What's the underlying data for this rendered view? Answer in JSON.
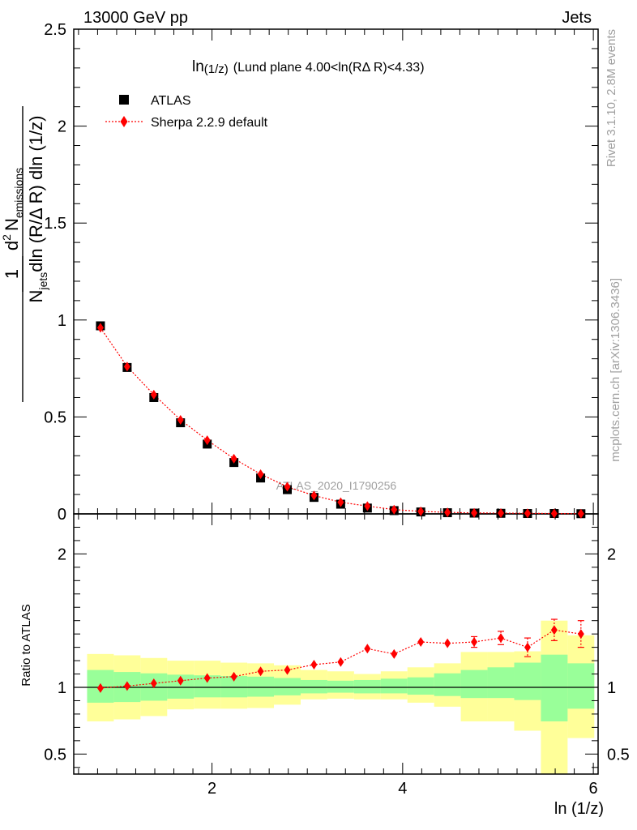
{
  "header": {
    "left": "13000 GeV pp",
    "right": "Jets"
  },
  "title": {
    "main": "ln",
    "main_sub": "(1/z)",
    "detail": "(Lund plane 4.00<ln(RΔ R)<4.33)"
  },
  "y_label": {
    "frac_one": "1",
    "num_d": "d",
    "num_exp": "2",
    "num_n": "N",
    "num_sub": "emissions",
    "den_n": "N",
    "den_sub": "jets",
    "den_rest": "dln (R/Δ R) dln (1/z)"
  },
  "ratio_label": "Ratio to ATLAS",
  "x_label": "ln (1/z)",
  "side_labels": {
    "rivet": "Rivet 3.1.10,  2.8M events",
    "mcplots": "mcplots.cern.ch [arXiv:1306.3436]"
  },
  "watermark": "ATLAS_2020_I1790256",
  "legend": {
    "atlas": "ATLAS",
    "sherpa": "Sherpa 2.2.9 default"
  },
  "colors": {
    "data": "#000000",
    "mc": "#ff0000",
    "band_inner": "#99ff99",
    "band_outer": "#ffff99"
  },
  "chart_data": {
    "type": "scatter",
    "xlabel": "ln (1/z)",
    "xlim": [
      0.55,
      6.05
    ],
    "main_ylim": [
      0,
      2.5
    ],
    "ratio_ylim": [
      0.35,
      2.3
    ],
    "x_ticks": [
      "2",
      "4",
      "6"
    ],
    "main_y_ticks": [
      "0",
      "0.5",
      "1",
      "1.5",
      "2",
      "2.5"
    ],
    "ratio_y_ticks": [
      "0.5",
      "1",
      "2"
    ],
    "bin_edges": [
      0.69,
      0.97,
      1.25,
      1.53,
      1.81,
      2.09,
      2.37,
      2.65,
      2.93,
      3.21,
      3.49,
      3.77,
      4.05,
      4.33,
      4.61,
      4.89,
      5.17,
      5.45,
      5.73,
      6.01
    ],
    "x": [
      0.83,
      1.11,
      1.39,
      1.67,
      1.95,
      2.23,
      2.51,
      2.79,
      3.07,
      3.35,
      3.63,
      3.91,
      4.19,
      4.47,
      4.75,
      5.03,
      5.31,
      5.59,
      5.87
    ],
    "series": [
      {
        "name": "ATLAS",
        "values": [
          0.97,
          0.755,
          0.6,
          0.47,
          0.36,
          0.265,
          0.185,
          0.125,
          0.085,
          0.05,
          0.03,
          0.017,
          0.01,
          0.006,
          0.004,
          0.003,
          0.002,
          0.002,
          0.001
        ]
      },
      {
        "name": "Sherpa 2.2.9 default",
        "values": [
          0.96,
          0.76,
          0.615,
          0.485,
          0.38,
          0.285,
          0.205,
          0.14,
          0.095,
          0.06,
          0.04,
          0.022,
          0.013,
          0.008,
          0.005,
          0.004,
          0.003,
          0.002,
          0.001
        ]
      }
    ],
    "ratio": {
      "values": [
        0.995,
        1.01,
        1.03,
        1.05,
        1.07,
        1.08,
        1.12,
        1.13,
        1.17,
        1.19,
        1.29,
        1.25,
        1.34,
        1.33,
        1.34,
        1.37,
        1.3,
        1.43,
        1.4
      ],
      "errors": [
        0.0,
        0.0,
        0.0,
        0.0,
        0.0,
        0.0,
        0.0,
        0.0,
        0.0,
        0.0,
        0.0,
        0.0,
        0.0,
        0.0,
        0.04,
        0.05,
        0.07,
        0.08,
        0.1
      ],
      "band_inner_low": [
        0.885,
        0.89,
        0.9,
        0.915,
        0.925,
        0.925,
        0.93,
        0.94,
        0.955,
        0.96,
        0.955,
        0.955,
        0.945,
        0.935,
        0.92,
        0.92,
        0.905,
        0.745,
        0.84
      ],
      "band_inner_high": [
        1.13,
        1.115,
        1.105,
        1.095,
        1.09,
        1.085,
        1.08,
        1.07,
        1.055,
        1.05,
        1.055,
        1.065,
        1.075,
        1.105,
        1.13,
        1.15,
        1.185,
        1.245,
        1.18
      ],
      "band_outer_low": [
        0.745,
        0.76,
        0.785,
        0.835,
        0.84,
        0.84,
        0.845,
        0.87,
        0.91,
        0.915,
        0.91,
        0.91,
        0.885,
        0.855,
        0.745,
        0.745,
        0.675,
        0.345,
        0.62
      ],
      "band_outer_high": [
        1.25,
        1.24,
        1.22,
        1.2,
        1.2,
        1.185,
        1.18,
        1.165,
        1.13,
        1.12,
        1.1,
        1.12,
        1.15,
        1.18,
        1.265,
        1.265,
        1.27,
        1.5,
        1.39
      ]
    }
  }
}
